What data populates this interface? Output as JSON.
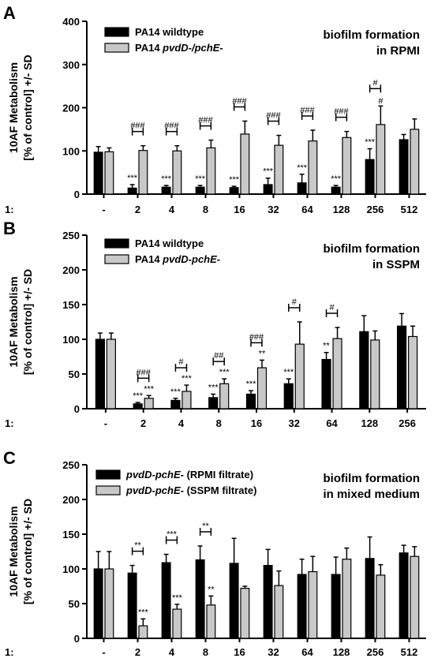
{
  "chart_data": [
    {
      "type": "bar",
      "panel": "A",
      "ylabel_lines": [
        "10AF Metabolism",
        "[% of control] +/- SD"
      ],
      "xlabel_prefix": "1:",
      "ylim": [
        0,
        400
      ],
      "yticks": [
        0,
        100,
        200,
        300,
        400
      ],
      "annotation_lines": [
        "biofilm formation",
        "in RPMI"
      ],
      "categories": [
        "-",
        "2",
        "4",
        "8",
        "16",
        "32",
        "64",
        "128",
        "256",
        "512"
      ],
      "series": [
        {
          "name": "PA14 wildtype",
          "name_parts": [
            {
              "text": "PA14 wildtype",
              "italic": false
            }
          ],
          "color": "#000000",
          "values": [
            97,
            14,
            16,
            16,
            15,
            22,
            26,
            16,
            80,
            126
          ],
          "sd": [
            13,
            8,
            4,
            4,
            3,
            15,
            20,
            4,
            25,
            12
          ],
          "marks": [
            "",
            "***",
            "***",
            "***",
            "***",
            "***",
            "***",
            "***",
            "***",
            ""
          ]
        },
        {
          "name": "PA14 pvdD-/pchE-",
          "name_parts": [
            {
              "text": "PA14 ",
              "italic": false
            },
            {
              "text": "pvdD-/pchE-",
              "italic": true
            }
          ],
          "color": "#c8c8c8",
          "values": [
            98,
            101,
            100,
            107,
            139,
            113,
            123,
            131,
            161,
            150
          ],
          "sd": [
            9,
            11,
            12,
            18,
            30,
            23,
            25,
            14,
            43,
            24
          ],
          "marks": [
            "",
            "",
            "",
            "",
            "",
            "",
            "",
            "",
            "#",
            ""
          ]
        }
      ],
      "comparisons": [
        "",
        "###",
        "###",
        "###",
        "###",
        "###",
        "###",
        "###",
        "#",
        ""
      ]
    },
    {
      "type": "bar",
      "panel": "B",
      "ylabel_lines": [
        "10AF Metabolism",
        "[% of control] +/- SD"
      ],
      "xlabel_prefix": "1:",
      "ylim": [
        0,
        250
      ],
      "yticks": [
        0,
        50,
        100,
        150,
        200,
        250
      ],
      "annotation_lines": [
        "biofilm formation",
        "in SSPM"
      ],
      "categories": [
        "-",
        "2",
        "4",
        "8",
        "16",
        "32",
        "64",
        "128",
        "256"
      ],
      "series": [
        {
          "name": "PA14 wildtype",
          "name_parts": [
            {
              "text": "PA14 wildtype",
              "italic": false
            }
          ],
          "color": "#000000",
          "values": [
            100,
            7,
            12,
            16,
            21,
            36,
            71,
            111,
            119
          ],
          "sd": [
            9,
            2,
            3,
            5,
            5,
            7,
            10,
            23,
            18
          ],
          "marks": [
            "",
            "***",
            "***",
            "***",
            "***",
            "***",
            "**",
            "",
            ""
          ]
        },
        {
          "name": "PA14 pvdD-pchE-",
          "name_parts": [
            {
              "text": "PA14 ",
              "italic": false
            },
            {
              "text": "pvdD-pchE-",
              "italic": true
            }
          ],
          "color": "#c8c8c8",
          "values": [
            100,
            15,
            25,
            36,
            59,
            93,
            101,
            99,
            104
          ],
          "sd": [
            9,
            4,
            9,
            7,
            11,
            32,
            16,
            13,
            15
          ],
          "marks": [
            "",
            "***",
            "***",
            "***",
            "**",
            "",
            "",
            "",
            ""
          ]
        }
      ],
      "comparisons": [
        "",
        "###",
        "#",
        "##",
        "###",
        "#",
        "#",
        "",
        ""
      ]
    },
    {
      "type": "bar",
      "panel": "C",
      "ylabel_lines": [
        "10AF Metabolism",
        "[% of control] +/- SD"
      ],
      "xlabel_prefix": "1:",
      "ylim": [
        0,
        250
      ],
      "yticks": [
        0,
        50,
        100,
        150,
        200,
        250
      ],
      "annotation_lines": [
        "biofilm formation",
        "in mixed medium"
      ],
      "categories": [
        "-",
        "2",
        "4",
        "8",
        "16",
        "32",
        "64",
        "128",
        "256",
        "512"
      ],
      "series": [
        {
          "name": "pvdD-pchE- (RPMI filtrate)",
          "name_parts": [
            {
              "text": "pvdD-pchE-",
              "italic": true
            },
            {
              "text": " (RPMI filtrate)",
              "italic": false
            }
          ],
          "color": "#000000",
          "values": [
            100,
            94,
            109,
            113,
            108,
            105,
            92,
            92,
            115,
            123
          ],
          "sd": [
            25,
            11,
            12,
            20,
            36,
            23,
            22,
            25,
            31,
            11
          ],
          "marks": [
            "",
            "",
            "",
            "",
            "",
            "",
            "",
            "",
            "",
            ""
          ]
        },
        {
          "name": "pvdD-pchE- (SSPM filtrate)",
          "name_parts": [
            {
              "text": "pvdD-pchE-",
              "italic": true
            },
            {
              "text": " (SSPM filtrate)",
              "italic": false
            }
          ],
          "color": "#c8c8c8",
          "values": [
            100,
            18,
            42,
            48,
            72,
            76,
            96,
            114,
            91,
            118
          ],
          "sd": [
            25,
            10,
            7,
            13,
            3,
            21,
            22,
            16,
            15,
            14
          ],
          "marks": [
            "",
            "***",
            "***",
            "**",
            "",
            "",
            "",
            "",
            "",
            ""
          ]
        }
      ],
      "comparisons": [
        "",
        "**",
        "***",
        "**",
        "",
        "",
        "",
        "",
        "",
        ""
      ]
    }
  ]
}
